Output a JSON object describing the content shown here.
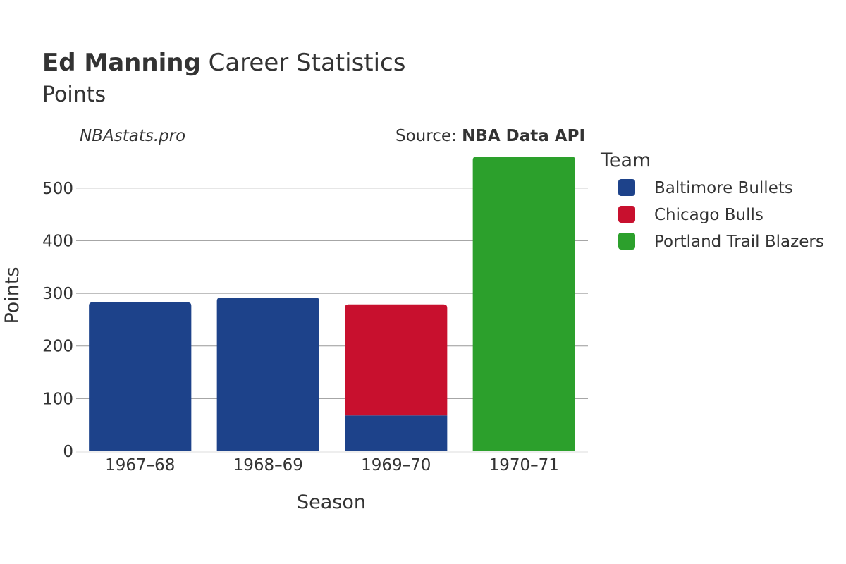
{
  "header": {
    "title_bold": "Ed Manning",
    "title_rest": "Career Statistics",
    "subtitle": "Points"
  },
  "credits": {
    "site": "NBAstats.pro",
    "source_prefix": "Source:",
    "source_name": "NBA Data API"
  },
  "colors": {
    "Baltimore Bullets": "#1d428a",
    "Chicago Bulls": "#c8102e",
    "Portland Trail Blazers": "#2ca02c",
    "grid": "#999999",
    "baseline": "#eeeeee"
  },
  "chart_data": {
    "type": "bar",
    "stacked": true,
    "categories": [
      "1967–68",
      "1968–69",
      "1969–70",
      "1970–71"
    ],
    "series": [
      {
        "name": "Baltimore Bullets",
        "values": [
          283,
          292,
          68,
          0
        ]
      },
      {
        "name": "Chicago Bulls",
        "values": [
          0,
          0,
          211,
          0
        ]
      },
      {
        "name": "Portland Trail Blazers",
        "values": [
          0,
          0,
          0,
          560
        ]
      }
    ],
    "xlabel": "Season",
    "ylabel": "Points",
    "ylim": [
      0,
      560
    ],
    "yticks": [
      0,
      100,
      200,
      300,
      400,
      500
    ],
    "grid": true,
    "legend": {
      "title": "Team",
      "position": "right"
    }
  }
}
